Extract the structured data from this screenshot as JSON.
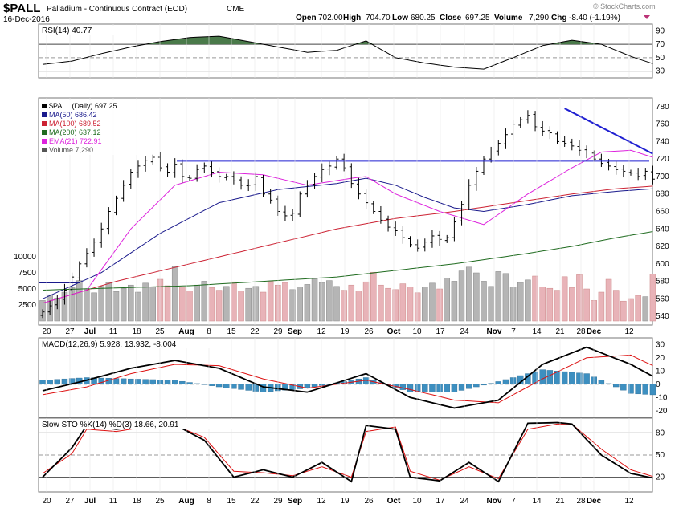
{
  "header": {
    "symbol": "$PALL",
    "name": "Palladium - Continuous Contract (EOD)",
    "exchange": "CME",
    "date": "16-Dec-2016",
    "open_label": "Open",
    "open": "702.00",
    "high_label": "High",
    "high": "704.70",
    "low_label": "Low",
    "low": "680.25",
    "close_label": "Close",
    "close": "697.25",
    "volume_label": "Volume",
    "volume": "7,290",
    "chg_label": "Chg",
    "chg": "-8.40 (-1.19%)",
    "watermark": "© StockCharts.com"
  },
  "chart_data": [
    {
      "type": "line",
      "panel": "rsi",
      "label": "RSI(14) 40.77",
      "ylim": [
        20,
        100
      ],
      "ticks": [
        "90",
        "70",
        "50",
        "30"
      ],
      "levels": [
        70,
        30
      ],
      "series": [
        {
          "name": "RSI(14)",
          "x": [
            0,
            4,
            8,
            12,
            16,
            20,
            24,
            28,
            32,
            36,
            40,
            44,
            48,
            52,
            56,
            60,
            64,
            68,
            72,
            76,
            80,
            83
          ],
          "values": [
            40,
            45,
            56,
            66,
            74,
            80,
            82,
            74,
            66,
            58,
            61,
            75,
            50,
            42,
            36,
            33,
            50,
            68,
            76,
            70,
            52,
            41
          ]
        }
      ]
    },
    {
      "type": "candlestick",
      "panel": "price",
      "label": "$PALL (Daily) 697.25",
      "ylim": [
        530,
        790
      ],
      "y_ticks": [
        540,
        560,
        580,
        600,
        620,
        640,
        660,
        680,
        700,
        720,
        740,
        760,
        780
      ],
      "volume_ticks": [
        "10000",
        "7500",
        "5000",
        "2500"
      ],
      "x_labels": [
        "20",
        "27",
        "Jul",
        "11",
        "18",
        "25",
        "Aug",
        "8",
        "15",
        "22",
        "29",
        "Sep",
        "12",
        "19",
        "26",
        "Oct",
        "10",
        "17",
        "24",
        "Nov",
        "7",
        "14",
        "21",
        "28",
        "Dec",
        "12"
      ],
      "legend": [
        {
          "text": "$PALL (Daily) 697.25",
          "color": "#000000"
        },
        {
          "text": "MA(50) 686.42",
          "color": "#1a1a8c"
        },
        {
          "text": "MA(100) 689.52",
          "color": "#cc2233"
        },
        {
          "text": "MA(200) 637.12",
          "color": "#1f6b1f"
        },
        {
          "text": "EMA(21) 722.91",
          "color": "#dd22dd"
        },
        {
          "text": "Volume 7,290",
          "color": "#555555"
        }
      ],
      "close": [
        545,
        552,
        560,
        570,
        585,
        600,
        612,
        625,
        640,
        660,
        675,
        690,
        705,
        712,
        718,
        722,
        710,
        705,
        714,
        700,
        698,
        708,
        712,
        705,
        700,
        700,
        695,
        690,
        690,
        700,
        680,
        673,
        660,
        655,
        658,
        680,
        690,
        700,
        708,
        712,
        720,
        710,
        692,
        680,
        670,
        660,
        650,
        642,
        638,
        630,
        622,
        618,
        625,
        632,
        628,
        630,
        648,
        668,
        690,
        706,
        720,
        728,
        738,
        748,
        760,
        765,
        770,
        757,
        752,
        750,
        740,
        738,
        735,
        730,
        728,
        720,
        715,
        712,
        708,
        706,
        704,
        700,
        706,
        697
      ],
      "series": [
        {
          "name": "MA(50)",
          "color": "#1a1a8c",
          "x": [
            0,
            8,
            16,
            24,
            32,
            40,
            44,
            48,
            52,
            56,
            60,
            66,
            72,
            78,
            83
          ],
          "values": [
            560,
            590,
            635,
            670,
            685,
            692,
            698,
            690,
            676,
            664,
            660,
            668,
            678,
            683,
            686
          ]
        },
        {
          "name": "MA(100)",
          "color": "#cc2233",
          "x": [
            0,
            10,
            20,
            30,
            40,
            48,
            56,
            64,
            72,
            78,
            83
          ],
          "values": [
            555,
            580,
            600,
            620,
            640,
            652,
            660,
            670,
            680,
            686,
            689
          ]
        },
        {
          "name": "MA(200)",
          "color": "#1f6b1f",
          "x": [
            0,
            20,
            40,
            56,
            66,
            72,
            78,
            83
          ],
          "values": [
            570,
            575,
            585,
            600,
            612,
            620,
            630,
            637
          ]
        },
        {
          "name": "EMA(21)",
          "color": "#dd22dd",
          "x": [
            0,
            6,
            12,
            18,
            24,
            30,
            36,
            42,
            44,
            48,
            54,
            60,
            66,
            72,
            76,
            80,
            83
          ],
          "values": [
            555,
            570,
            640,
            690,
            705,
            702,
            690,
            698,
            700,
            680,
            660,
            645,
            680,
            710,
            728,
            730,
            722
          ]
        }
      ],
      "volume": [
        3200,
        4100,
        3600,
        4500,
        5200,
        6300,
        5000,
        4400,
        5400,
        6000,
        4600,
        5100,
        5600,
        4500,
        5900,
        5300,
        6500,
        5500,
        8500,
        5300,
        4700,
        5600,
        6200,
        5200,
        4800,
        5400,
        6100,
        4700,
        5100,
        5400,
        4500,
        6200,
        5600,
        6000,
        4900,
        5300,
        5700,
        6600,
        6000,
        6300,
        5400,
        4800,
        5600,
        4700,
        6100,
        7600,
        5600,
        5100,
        4900,
        5800,
        5300,
        4400,
        5300,
        5900,
        5000,
        6700,
        6200,
        7800,
        8400,
        7500,
        6200,
        5400,
        7700,
        7400,
        5300,
        6000,
        6400,
        7000,
        5300,
        5100,
        4800,
        6900,
        5200,
        7200,
        5000,
        3200,
        4500,
        6500,
        4800,
        3100,
        3500,
        4000,
        3800,
        7300
      ]
    },
    {
      "type": "line",
      "panel": "macd",
      "label": "MACD(12,26,9) 5.928, 13.932, -8.004",
      "ylim": [
        -25,
        35
      ],
      "ticks": [
        "30",
        "20",
        "10",
        "0",
        "-10",
        "-20"
      ],
      "series": [
        {
          "name": "MACD",
          "x": [
            0,
            6,
            12,
            18,
            24,
            30,
            36,
            44,
            50,
            56,
            62,
            68,
            74,
            80,
            83
          ],
          "values": [
            -5,
            3,
            12,
            18,
            12,
            -2,
            -6,
            8,
            -10,
            -18,
            -12,
            15,
            28,
            15,
            6
          ]
        },
        {
          "name": "Signal",
          "x": [
            0,
            6,
            12,
            18,
            24,
            30,
            36,
            44,
            50,
            56,
            62,
            68,
            74,
            80,
            83
          ],
          "values": [
            -8,
            -2,
            8,
            15,
            14,
            4,
            -3,
            3,
            -4,
            -12,
            -14,
            4,
            20,
            22,
            14
          ]
        }
      ]
    },
    {
      "type": "line",
      "panel": "stochastic",
      "label": "Slow STO %K(14) %D(3) 18.66, 20.91",
      "ylim": [
        0,
        100
      ],
      "ticks": [
        "80",
        "50",
        "20"
      ],
      "series": [
        {
          "name": "%K",
          "x": [
            0,
            4,
            6,
            10,
            14,
            18,
            22,
            26,
            30,
            34,
            38,
            42,
            44,
            48,
            50,
            54,
            58,
            62,
            66,
            70,
            72,
            76,
            80,
            83
          ],
          "values": [
            20,
            60,
            90,
            85,
            90,
            91,
            70,
            20,
            30,
            20,
            40,
            14,
            90,
            85,
            20,
            15,
            40,
            14,
            93,
            94,
            92,
            50,
            25,
            19
          ]
        },
        {
          "name": "%D",
          "x": [
            0,
            4,
            6,
            10,
            14,
            18,
            22,
            26,
            30,
            34,
            38,
            42,
            44,
            48,
            50,
            54,
            58,
            62,
            66,
            70,
            72,
            76,
            80,
            83
          ],
          "values": [
            25,
            52,
            85,
            82,
            88,
            90,
            74,
            28,
            26,
            22,
            34,
            20,
            82,
            88,
            28,
            16,
            34,
            18,
            85,
            92,
            92,
            58,
            30,
            21
          ]
        }
      ]
    }
  ]
}
